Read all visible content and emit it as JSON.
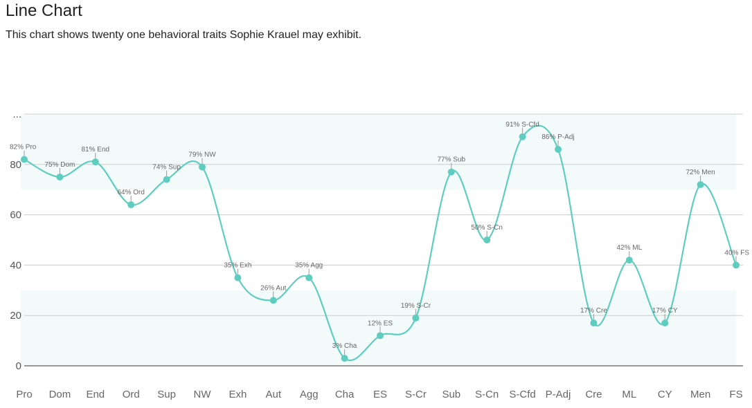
{
  "header": {
    "title": "Line Chart",
    "subtitle": "This chart shows twenty one behavioral traits Sophie Krauel may exhibit."
  },
  "colors": {
    "line": "#5ecdc0",
    "band": "#f3fbfa",
    "grid": "#cccccc",
    "axis": "#333333"
  },
  "chart_data": {
    "type": "line",
    "title": "Line Chart",
    "subtitle": "This chart shows twenty one behavioral traits Sophie Krauel may exhibit.",
    "categories": [
      "Pro",
      "Dom",
      "End",
      "Ord",
      "Sup",
      "NW",
      "Exh",
      "Aut",
      "Agg",
      "Cha",
      "ES",
      "S-Cr",
      "Sub",
      "S-Cn",
      "S-Cfd",
      "P-Adj",
      "Cre",
      "ML",
      "CY",
      "Men",
      "FS"
    ],
    "values": [
      82,
      75,
      81,
      64,
      74,
      79,
      35,
      26,
      35,
      3,
      12,
      19,
      77,
      50,
      91,
      86,
      17,
      42,
      17,
      72,
      40
    ],
    "data_labels": [
      "82% Pro",
      "75% Dom",
      "81% End",
      "64% Ord",
      "74% Sup",
      "79% NW",
      "35% Exh",
      "26% Aut",
      "35% Agg",
      "3% Cha",
      "12% ES",
      "19% S-Cr",
      "77% Sub",
      "50% S-Cn",
      "91% S-Cfd",
      "86% P-Adj",
      "17% Cre",
      "42% ML",
      "17% CY",
      "72% Men",
      "40% FS"
    ],
    "y_ticks": [
      "0",
      "20",
      "40",
      "60",
      "80",
      "..."
    ],
    "ylim": [
      0,
      100
    ],
    "bands": [
      [
        0,
        30
      ],
      [
        70,
        100
      ]
    ],
    "grid": true,
    "legend": "none",
    "smooth": true
  }
}
